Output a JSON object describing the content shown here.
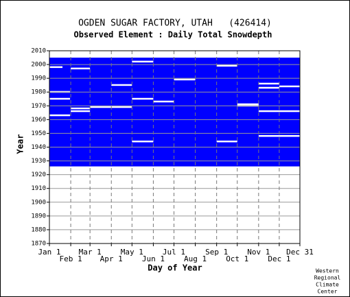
{
  "chart_data": {
    "type": "coverage",
    "title": "OGDEN SUGAR FACTORY, UTAH   (426414)",
    "subtitle": "Observed Element : Daily Total Snowdepth",
    "xlabel": "Day of Year",
    "ylabel": "Year",
    "credit": [
      "Western",
      "Regional",
      "Climate",
      "Center"
    ],
    "color": "#0000ff",
    "coverage_years": [
      1926,
      2005
    ],
    "gaps": [
      [
        2002,
        121,
        152
      ],
      [
        1999,
        244,
        274
      ],
      [
        1989,
        182,
        213
      ],
      [
        1985,
        91,
        121
      ],
      [
        1980,
        1,
        31
      ],
      [
        1975,
        121,
        152
      ],
      [
        1973,
        152,
        182
      ],
      [
        1971,
        274,
        305
      ],
      [
        1970,
        274,
        305
      ],
      [
        1968,
        32,
        60
      ],
      [
        1966,
        32,
        60
      ],
      [
        1969,
        60,
        121
      ],
      [
        1944,
        121,
        152
      ],
      [
        1944,
        244,
        274
      ],
      [
        1986,
        305,
        335
      ],
      [
        1983,
        305,
        335
      ],
      [
        1966,
        305,
        365
      ],
      [
        1948,
        305,
        365
      ],
      [
        1975,
        1,
        31
      ],
      [
        1998,
        1,
        20
      ],
      [
        1997,
        32,
        60
      ],
      [
        1984,
        335,
        365
      ],
      [
        1963,
        1,
        31
      ]
    ],
    "xlim": [
      1,
      365
    ],
    "ylim": [
      1870,
      2010
    ],
    "xticks": [
      {
        "value": 1,
        "label": "Jan 1"
      },
      {
        "value": 32,
        "label": "Feb 1"
      },
      {
        "value": 60,
        "label": "Mar 1"
      },
      {
        "value": 91,
        "label": "Apr 1"
      },
      {
        "value": 121,
        "label": "May 1"
      },
      {
        "value": 152,
        "label": "Jun 1"
      },
      {
        "value": 182,
        "label": "Jul 1"
      },
      {
        "value": 213,
        "label": "Aug 1"
      },
      {
        "value": 244,
        "label": "Sep 1"
      },
      {
        "value": 274,
        "label": "Oct 1"
      },
      {
        "value": 305,
        "label": "Nov 1"
      },
      {
        "value": 335,
        "label": "Dec 1"
      },
      {
        "value": 365,
        "label": "Dec 31"
      }
    ],
    "yticks": [
      1870,
      1880,
      1890,
      1900,
      1910,
      1920,
      1930,
      1940,
      1950,
      1960,
      1970,
      1980,
      1990,
      2000,
      2010
    ],
    "grid": true
  }
}
